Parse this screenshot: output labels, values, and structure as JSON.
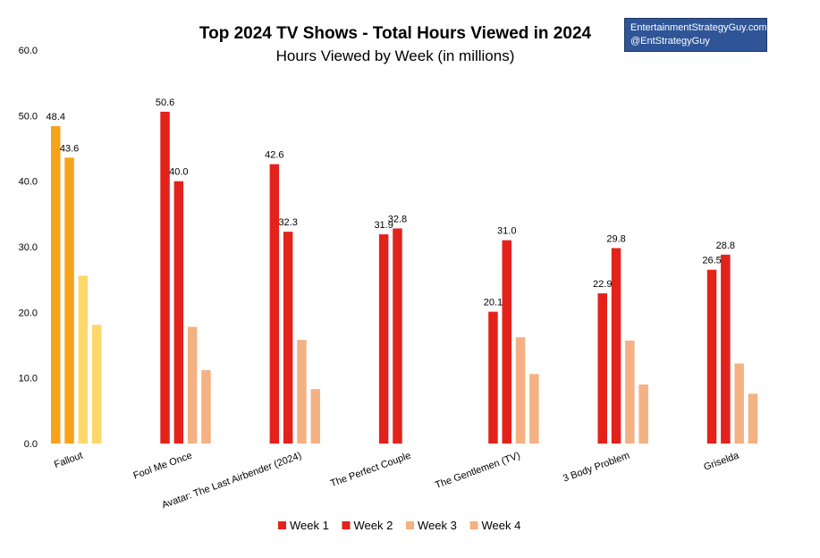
{
  "chart_data": {
    "type": "bar",
    "title": "Top 2024 TV Shows - Total Hours Viewed in 2024",
    "subtitle": "Hours Viewed by Week (in millions)",
    "xlabel": "",
    "ylabel": "",
    "ylim": [
      0,
      60
    ],
    "yticks": [
      0,
      10,
      20,
      30,
      40,
      50,
      60
    ],
    "ytick_labels": [
      "0.0",
      "10.0",
      "20.0",
      "30.0",
      "40.0",
      "50.0",
      "60.0"
    ],
    "grid": false,
    "legend_position": "bottom",
    "categories": [
      "Fallout",
      "Fool Me Once",
      "Avatar: The Last Airbender (2024)",
      "The Perfect Couple",
      "The Gentlemen (TV)",
      "3 Body Problem",
      "Griselda"
    ],
    "series": [
      {
        "name": "Week 1",
        "color": "#e3221c",
        "values": [
          48.4,
          50.6,
          42.6,
          31.9,
          20.1,
          22.9,
          26.5
        ],
        "labels": [
          "48.4",
          "50.6",
          "42.6",
          "31.9",
          "20.1",
          "22.9",
          "26.5"
        ]
      },
      {
        "name": "Week 2",
        "color": "#e3221c",
        "values": [
          43.6,
          40.0,
          32.3,
          32.8,
          31.0,
          29.8,
          28.8
        ],
        "labels": [
          "43.6",
          "40.0",
          "32.3",
          "32.8",
          "31.0",
          "29.8",
          "28.8"
        ]
      },
      {
        "name": "Week 3",
        "color": "#f4b183",
        "values": [
          25.6,
          17.8,
          15.8,
          null,
          16.2,
          15.7,
          12.2
        ],
        "labels": []
      },
      {
        "name": "Week 4",
        "color": "#f4b183",
        "values": [
          18.1,
          11.2,
          8.3,
          null,
          10.6,
          9.0,
          7.6
        ],
        "labels": []
      }
    ],
    "highlight": {
      "category": "Fallout",
      "colors": [
        "#f7a21b",
        "#f7a21b",
        "#fcd86b",
        "#fcd86b"
      ]
    }
  },
  "brand": {
    "line1": "EntertainmentStrategyGuy.com",
    "line2": "@EntStrategyGuy"
  }
}
